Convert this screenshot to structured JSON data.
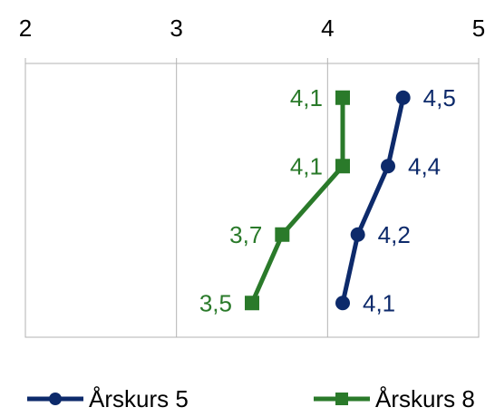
{
  "chart_data": {
    "type": "line",
    "orientation": "horizontal-values",
    "title": "",
    "xlabel": "",
    "ylabel": "",
    "xlim": [
      2,
      5
    ],
    "x_ticks": [
      "2",
      "3",
      "4",
      "5"
    ],
    "grid": true,
    "legend_position": "bottom",
    "series": [
      {
        "name": "Årskurs 5",
        "color": "#0d2a6b",
        "marker": "circle",
        "values": [
          4.5,
          4.4,
          4.2,
          4.1
        ],
        "labels": [
          "4,5",
          "4,4",
          "4,2",
          "4,1"
        ]
      },
      {
        "name": "Årskurs 8",
        "color": "#2a7a2a",
        "marker": "square",
        "values": [
          4.1,
          4.1,
          3.7,
          3.5
        ],
        "labels": [
          "4,1",
          "4,1",
          "3,7",
          "3,5"
        ]
      }
    ]
  }
}
